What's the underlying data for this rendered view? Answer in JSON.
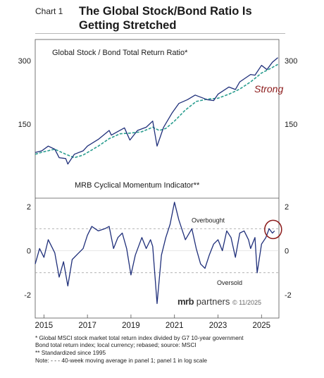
{
  "header": {
    "chart_label": "Chart 1",
    "title_line1": "The Global Stock/Bond Ratio Is",
    "title_line2": "Getting Stretched"
  },
  "annotations": {
    "strong": "Strong",
    "overbought": "Overbought",
    "oversold": "Oversold"
  },
  "logo": {
    "brand": "mrb",
    "partners": "partners",
    "copyright": "© 11/2025"
  },
  "footnotes": [
    "* Global MSCI stock market total return index divided by G7 10-year government",
    "   Bond total return index; local currency; rebased; source: MSCI",
    "** Standardized since 1995",
    "Note: - - - 40-week moving average in panel 1; panel 1 in log scale"
  ],
  "colors": {
    "series": "#1f2f7a",
    "moving_average": "#2a9d8f",
    "circle": "#8b1a1a",
    "strong_text": "#8b1a1a",
    "reference_lines": "#999999"
  },
  "chart_data": [
    {
      "type": "line",
      "title": "Global Stock / Bond Total Return Ratio*",
      "y_scale": "log",
      "yticks": [
        150,
        300
      ],
      "xlim": [
        2014.6,
        2025.8
      ],
      "series": [
        {
          "values": [
            [
              2014.6,
              110
            ],
            [
              2014.9,
              112
            ],
            [
              2015.2,
              118
            ],
            [
              2015.5,
              114
            ],
            [
              2015.7,
              104
            ],
            [
              2016.0,
              103
            ],
            [
              2016.1,
              97
            ],
            [
              2016.4,
              108
            ],
            [
              2016.8,
              112
            ],
            [
              2017.0,
              118
            ],
            [
              2017.5,
              127
            ],
            [
              2018.0,
              140
            ],
            [
              2018.1,
              133
            ],
            [
              2018.7,
              144
            ],
            [
              2018.95,
              126
            ],
            [
              2019.3,
              140
            ],
            [
              2019.7,
              145
            ],
            [
              2020.0,
              155
            ],
            [
              2020.2,
              118
            ],
            [
              2020.5,
              145
            ],
            [
              2020.9,
              170
            ],
            [
              2021.2,
              188
            ],
            [
              2021.6,
              196
            ],
            [
              2021.95,
              206
            ],
            [
              2022.5,
              196
            ],
            [
              2022.8,
              194
            ],
            [
              2023.0,
              208
            ],
            [
              2023.5,
              225
            ],
            [
              2023.8,
              219
            ],
            [
              2024.0,
              238
            ],
            [
              2024.5,
              258
            ],
            [
              2024.7,
              256
            ],
            [
              2025.0,
              285
            ],
            [
              2025.25,
              272
            ],
            [
              2025.5,
              295
            ],
            [
              2025.75,
              310
            ]
          ]
        },
        {
          "values": [
            [
              2014.6,
              108
            ],
            [
              2015.0,
              111
            ],
            [
              2015.5,
              114
            ],
            [
              2016.0,
              108
            ],
            [
              2016.4,
              104
            ],
            [
              2016.8,
              107
            ],
            [
              2017.5,
              118
            ],
            [
              2018.0,
              128
            ],
            [
              2018.5,
              135
            ],
            [
              2019.0,
              136
            ],
            [
              2019.5,
              138
            ],
            [
              2020.0,
              145
            ],
            [
              2020.3,
              140
            ],
            [
              2020.6,
              143
            ],
            [
              2021.0,
              155
            ],
            [
              2021.5,
              175
            ],
            [
              2022.0,
              192
            ],
            [
              2022.5,
              197
            ],
            [
              2023.0,
              199
            ],
            [
              2023.5,
              208
            ],
            [
              2024.0,
              220
            ],
            [
              2024.5,
              238
            ],
            [
              2025.0,
              262
            ],
            [
              2025.4,
              275
            ],
            [
              2025.75,
              288
            ]
          ]
        }
      ]
    },
    {
      "type": "line",
      "title": "MRB Cyclical Momentum Indicator**",
      "ylim": [
        -2.4,
        2.6
      ],
      "yticks": [
        -2,
        0,
        2
      ],
      "reference_lines": [
        1,
        -1
      ],
      "xlim": [
        2014.6,
        2025.8
      ],
      "xticks": [
        2015,
        2017,
        2019,
        2021,
        2023,
        2025
      ],
      "series": [
        {
          "values": [
            [
              2014.6,
              -0.6
            ],
            [
              2014.8,
              0.1
            ],
            [
              2015.0,
              -0.3
            ],
            [
              2015.2,
              0.5
            ],
            [
              2015.5,
              -0.1
            ],
            [
              2015.7,
              -1.2
            ],
            [
              2015.9,
              -0.5
            ],
            [
              2016.1,
              -1.6
            ],
            [
              2016.3,
              -0.4
            ],
            [
              2016.6,
              -0.1
            ],
            [
              2016.8,
              0.1
            ],
            [
              2017.0,
              0.7
            ],
            [
              2017.2,
              1.1
            ],
            [
              2017.5,
              0.9
            ],
            [
              2017.8,
              1.0
            ],
            [
              2018.0,
              1.1
            ],
            [
              2018.2,
              0.1
            ],
            [
              2018.4,
              0.6
            ],
            [
              2018.6,
              0.8
            ],
            [
              2018.8,
              0.1
            ],
            [
              2019.0,
              -1.1
            ],
            [
              2019.2,
              -0.2
            ],
            [
              2019.5,
              0.6
            ],
            [
              2019.7,
              0.1
            ],
            [
              2019.9,
              0.5
            ],
            [
              2020.0,
              0.2
            ],
            [
              2020.2,
              -2.4
            ],
            [
              2020.4,
              -0.2
            ],
            [
              2020.6,
              0.6
            ],
            [
              2020.8,
              1.2
            ],
            [
              2021.0,
              2.2
            ],
            [
              2021.2,
              1.4
            ],
            [
              2021.5,
              0.5
            ],
            [
              2021.8,
              1.0
            ],
            [
              2022.0,
              0.1
            ],
            [
              2022.2,
              -0.6
            ],
            [
              2022.4,
              -0.8
            ],
            [
              2022.6,
              -0.2
            ],
            [
              2022.8,
              0.3
            ],
            [
              2023.0,
              0.5
            ],
            [
              2023.2,
              0.0
            ],
            [
              2023.4,
              0.9
            ],
            [
              2023.6,
              0.6
            ],
            [
              2023.8,
              -0.3
            ],
            [
              2024.0,
              0.8
            ],
            [
              2024.2,
              0.9
            ],
            [
              2024.4,
              0.5
            ],
            [
              2024.5,
              0.1
            ],
            [
              2024.7,
              0.6
            ],
            [
              2024.8,
              -1.0
            ],
            [
              2025.0,
              0.3
            ],
            [
              2025.2,
              0.6
            ],
            [
              2025.35,
              1.0
            ],
            [
              2025.5,
              0.8
            ],
            [
              2025.6,
              0.9
            ]
          ]
        }
      ]
    }
  ]
}
